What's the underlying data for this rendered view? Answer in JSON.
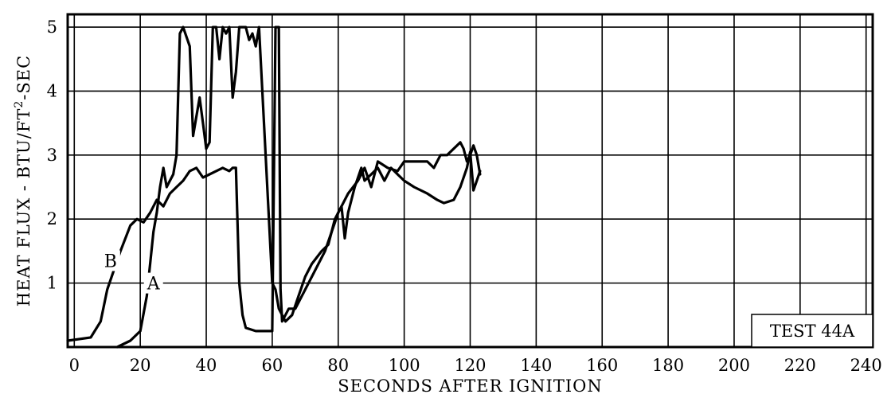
{
  "chart_data": {
    "type": "line",
    "title": "",
    "xlabel": "SECONDS AFTER IGNITION",
    "ylabel_parts": [
      "HEAT FLUX - BTU/FT",
      "2",
      "-SEC"
    ],
    "xlim": [
      -2,
      242
    ],
    "ylim": [
      0,
      5.2
    ],
    "x_ticks": [
      0,
      20,
      40,
      60,
      80,
      100,
      120,
      140,
      160,
      180,
      200,
      220,
      240
    ],
    "x_tick_labels": [
      "0",
      "20",
      "40",
      "60",
      "80",
      "100",
      "120",
      "140",
      "160",
      "180",
      "200",
      "220",
      "240"
    ],
    "y_ticks": [
      1,
      2,
      3,
      4,
      5
    ],
    "y_tick_labels": [
      "1",
      "2",
      "3",
      "4",
      "5"
    ],
    "grid": true,
    "annotation": "TEST 44A",
    "series": [
      {
        "name": "A",
        "line_color": "#000000",
        "label_at": [
          24,
          1
        ],
        "points": [
          [
            13,
            0
          ],
          [
            17,
            0.1
          ],
          [
            20,
            0.25
          ],
          [
            22,
            0.8
          ],
          [
            24,
            1.8
          ],
          [
            25,
            2.1
          ],
          [
            26,
            2.5
          ],
          [
            27,
            2.8
          ],
          [
            28,
            2.5
          ],
          [
            29,
            2.6
          ],
          [
            30,
            2.7
          ],
          [
            31,
            3.0
          ],
          [
            32,
            4.9
          ],
          [
            33,
            5.0
          ],
          [
            35,
            4.7
          ],
          [
            36,
            3.3
          ],
          [
            37,
            3.6
          ],
          [
            38,
            3.9
          ],
          [
            39,
            3.5
          ],
          [
            40,
            3.1
          ],
          [
            41,
            3.2
          ],
          [
            42,
            5.0
          ],
          [
            43,
            5.0
          ],
          [
            44,
            4.5
          ],
          [
            45,
            5.0
          ],
          [
            46,
            4.9
          ],
          [
            47,
            5.0
          ],
          [
            48,
            3.9
          ],
          [
            49,
            4.3
          ],
          [
            50,
            5.0
          ],
          [
            52,
            5.0
          ],
          [
            53,
            4.8
          ],
          [
            54,
            4.9
          ],
          [
            55,
            4.7
          ],
          [
            56,
            5.0
          ],
          [
            58,
            3.0
          ],
          [
            60,
            1.0
          ],
          [
            61,
            0.9
          ],
          [
            62,
            0.6
          ],
          [
            64,
            0.4
          ],
          [
            66,
            0.5
          ],
          [
            68,
            0.8
          ],
          [
            70,
            1.1
          ],
          [
            72,
            1.3
          ],
          [
            75,
            1.5
          ],
          [
            77,
            1.6
          ],
          [
            79,
            2.0
          ],
          [
            81,
            2.2
          ],
          [
            82,
            1.7
          ],
          [
            83,
            2.1
          ],
          [
            85,
            2.5
          ],
          [
            87,
            2.8
          ],
          [
            88,
            2.6
          ],
          [
            90,
            2.7
          ],
          [
            92,
            2.8
          ],
          [
            94,
            2.6
          ],
          [
            96,
            2.8
          ],
          [
            98,
            2.7
          ],
          [
            100,
            2.6
          ],
          [
            103,
            2.5
          ],
          [
            107,
            2.4
          ],
          [
            110,
            2.3
          ],
          [
            112,
            2.25
          ],
          [
            115,
            2.3
          ],
          [
            117,
            2.5
          ],
          [
            119,
            2.8
          ],
          [
            120,
            3.05
          ],
          [
            121,
            2.45
          ],
          [
            122,
            2.6
          ],
          [
            123,
            2.75
          ]
        ]
      },
      {
        "name": "B",
        "line_color": "#000000",
        "label_at": [
          11,
          1.35
        ],
        "points": [
          [
            -2,
            0.1
          ],
          [
            5,
            0.15
          ],
          [
            8,
            0.4
          ],
          [
            10,
            0.9
          ],
          [
            14,
            1.5
          ],
          [
            17,
            1.9
          ],
          [
            19,
            2.0
          ],
          [
            21,
            1.95
          ],
          [
            23,
            2.1
          ],
          [
            25,
            2.3
          ],
          [
            27,
            2.2
          ],
          [
            29,
            2.4
          ],
          [
            31,
            2.5
          ],
          [
            33,
            2.6
          ],
          [
            35,
            2.75
          ],
          [
            37,
            2.8
          ],
          [
            39,
            2.65
          ],
          [
            41,
            2.7
          ],
          [
            43,
            2.75
          ],
          [
            45,
            2.8
          ],
          [
            47,
            2.75
          ],
          [
            48,
            2.8
          ],
          [
            49,
            2.8
          ],
          [
            50,
            1.0
          ],
          [
            51,
            0.5
          ],
          [
            52,
            0.3
          ],
          [
            55,
            0.25
          ],
          [
            58,
            0.25
          ],
          [
            60,
            0.25
          ],
          [
            61,
            5.0
          ],
          [
            62,
            5.0
          ],
          [
            62.5,
            0.9
          ],
          [
            63,
            0.4
          ],
          [
            65,
            0.6
          ],
          [
            67,
            0.6
          ],
          [
            69,
            0.8
          ],
          [
            71,
            1.0
          ],
          [
            73,
            1.2
          ],
          [
            76,
            1.5
          ],
          [
            78,
            1.8
          ],
          [
            80,
            2.1
          ],
          [
            83,
            2.4
          ],
          [
            86,
            2.6
          ],
          [
            88,
            2.8
          ],
          [
            90,
            2.5
          ],
          [
            92,
            2.9
          ],
          [
            95,
            2.8
          ],
          [
            98,
            2.75
          ],
          [
            100,
            2.9
          ],
          [
            104,
            2.9
          ],
          [
            107,
            2.9
          ],
          [
            109,
            2.8
          ],
          [
            111,
            3.0
          ],
          [
            113,
            3.0
          ],
          [
            115,
            3.1
          ],
          [
            117,
            3.2
          ],
          [
            118,
            3.1
          ],
          [
            119,
            2.9
          ],
          [
            120,
            3.0
          ],
          [
            121,
            3.15
          ],
          [
            122,
            3.0
          ],
          [
            123,
            2.7
          ]
        ]
      }
    ]
  }
}
